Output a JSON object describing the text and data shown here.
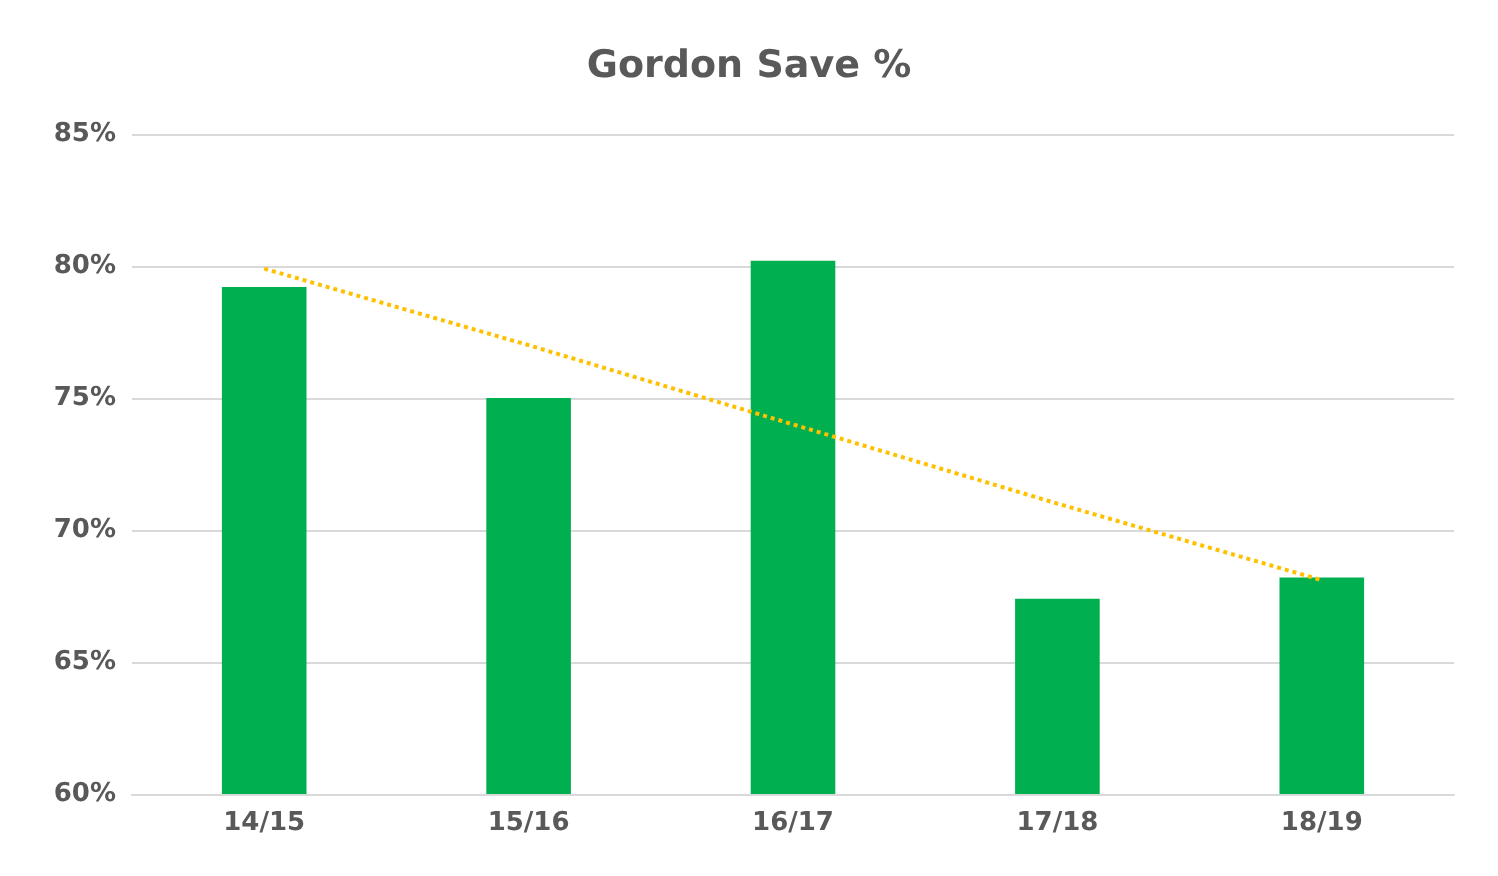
{
  "chart_data": {
    "type": "bar",
    "title": "Gordon Save %",
    "categories": [
      "14/15",
      "15/16",
      "16/17",
      "17/18",
      "18/19"
    ],
    "series": [
      {
        "color": "#00b050",
        "values": [
          79.2,
          75.0,
          80.2,
          67.4,
          68.2
        ]
      },
      {
        "type": "line",
        "color": "#ffc000",
        "values": [
          79.9,
          77.0,
          74.0,
          71.0,
          68.1
        ],
        "line_style": "dotted",
        "marker": "none"
      }
    ],
    "ylim": [
      60,
      85
    ],
    "yticks": [
      {
        "value": 60,
        "label": "60%"
      },
      {
        "value": 65,
        "label": "65%"
      },
      {
        "value": 70,
        "label": "70%"
      },
      {
        "value": 75,
        "label": "75%"
      },
      {
        "value": 80,
        "label": "80%"
      },
      {
        "value": 85,
        "label": "85%"
      }
    ],
    "grid": "y"
  }
}
